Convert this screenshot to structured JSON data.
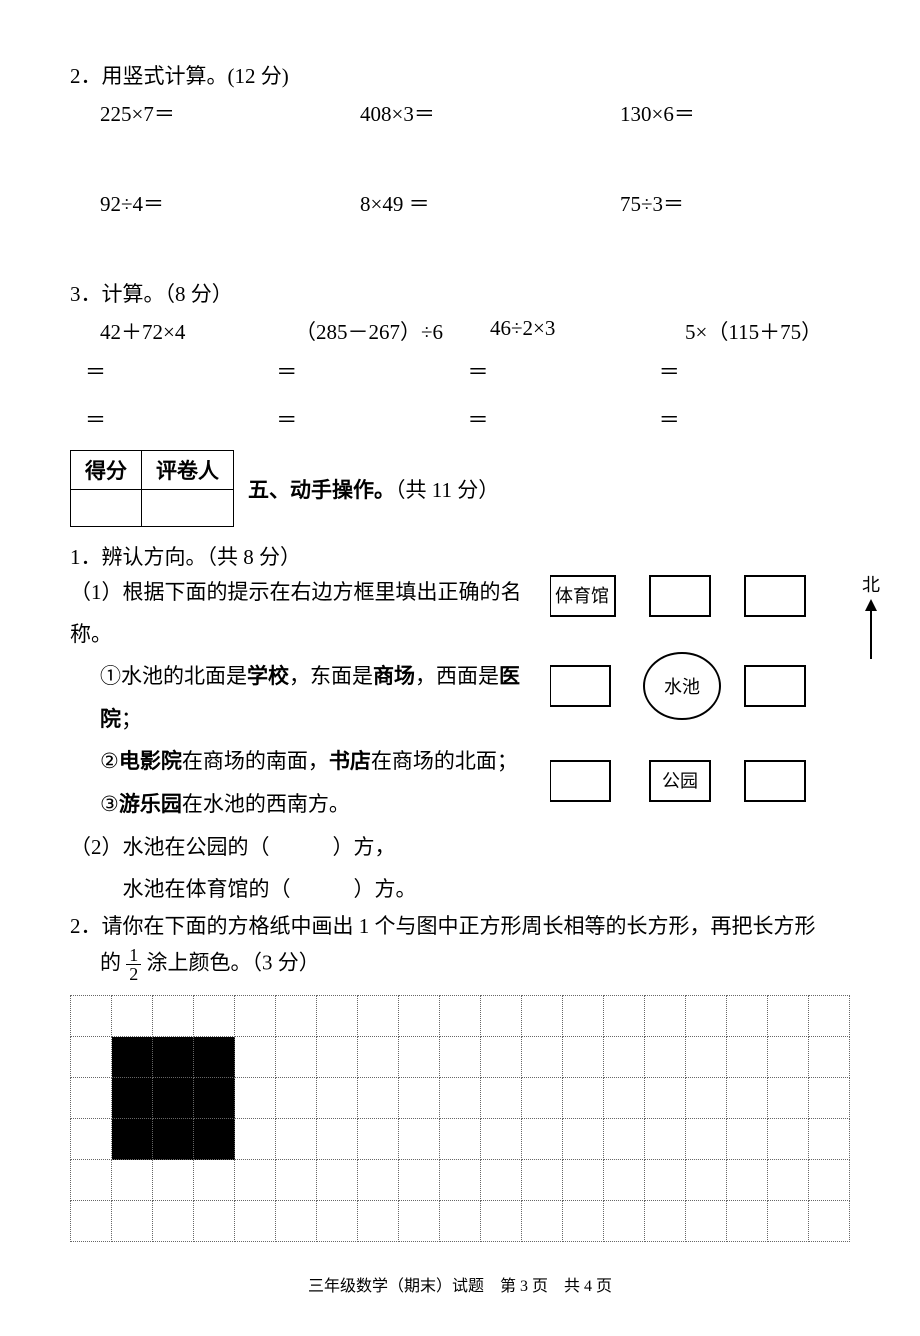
{
  "q2_label": "2．用竖式计算。(12 分)",
  "q2": {
    "r1": [
      "225×7＝",
      "408×3＝",
      "130×6＝"
    ],
    "r2": [
      "92÷4＝",
      "8×49 ＝",
      "75÷3＝"
    ]
  },
  "q3_label": "3．计算。（8 分）",
  "q3": {
    "items": [
      "42＋72×4",
      "（285－267）÷6",
      "46÷2×3",
      "5×（115＋75）"
    ],
    "eq": "＝"
  },
  "section5": {
    "score": "得分",
    "grader": "评卷人",
    "title": "五、动手操作。",
    "points": "（共 11 分）"
  },
  "q5_1": {
    "label": "1．辨认方向。（共 8 分）",
    "p1": "（1）根据下面的提示在右边方框里填出正确的名称。",
    "a": "①水池的北面是",
    "a_b1": "学校",
    "a_mid": "，东面是",
    "a_b2": "商场",
    "a_mid2": "，西面是",
    "a_b3": "医院",
    "a_end": "；",
    "b": "②",
    "b_b1": "电影院",
    "b_mid": "在商场的南面，",
    "b_b2": "书店",
    "b_end": "在商场的北面；",
    "c": "③",
    "c_b1": "游乐园",
    "c_end": "在水池的西南方。",
    "p2_a": "（2）水池在公园的（　　　）方，",
    "p2_b": "水池在体育馆的（　　　）方。",
    "north": "北"
  },
  "map": {
    "gym": "体育馆",
    "pond": "水池",
    "park": "公园"
  },
  "q5_2": {
    "pre": "2．请你在下面的方格纸中画出 1 个与图中正方形周长相等的长方形，再把长方形",
    "post_a": "的",
    "post_b": "涂上颜色。（3 分）",
    "frac_num": "1",
    "frac_den": "2"
  },
  "grid": {
    "rows": 6,
    "cols": 19,
    "filled": [
      [
        1,
        1
      ],
      [
        1,
        2
      ],
      [
        1,
        3
      ],
      [
        2,
        1
      ],
      [
        2,
        2
      ],
      [
        2,
        3
      ],
      [
        3,
        1
      ],
      [
        3,
        2
      ],
      [
        3,
        3
      ]
    ]
  },
  "footer": "三年级数学（期末）试题　第 3 页　共 4 页"
}
